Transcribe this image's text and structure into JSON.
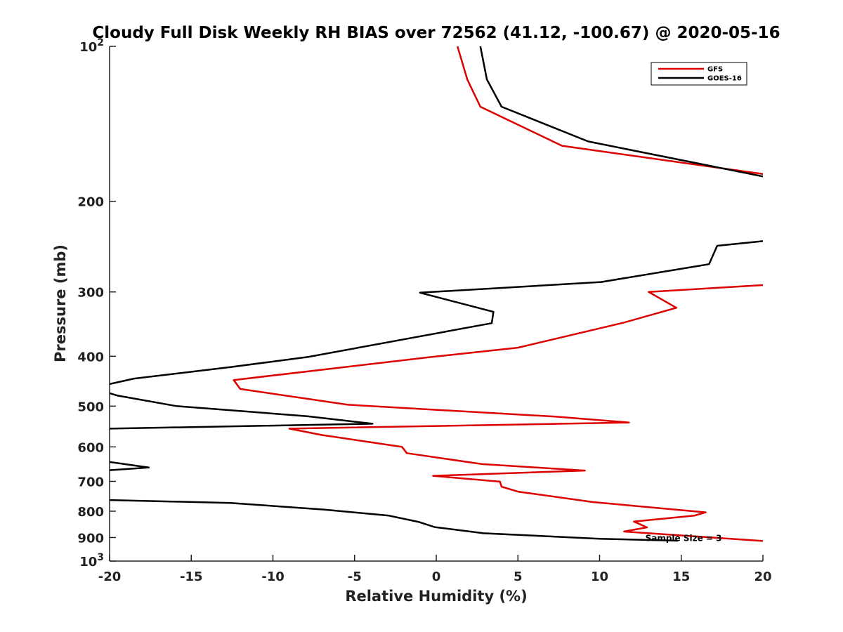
{
  "chart_data": {
    "type": "line",
    "title": "Cloudy Full Disk Weekly RH BIAS over 72562 (41.12, -100.67) @ 2020-05-16",
    "xlabel": "Relative Humidity (%)",
    "ylabel": "Pressure (mb)",
    "xlim": [
      -20,
      20
    ],
    "ylim": [
      100,
      1000
    ],
    "yscale": "log",
    "y_reversed": true,
    "grid": false,
    "legend_position": "top-right",
    "x_ticks": [
      {
        "value": -20,
        "label": "-20"
      },
      {
        "value": -15,
        "label": "-15"
      },
      {
        "value": -10,
        "label": "-10"
      },
      {
        "value": -5,
        "label": "-5"
      },
      {
        "value": 0,
        "label": "0"
      },
      {
        "value": 5,
        "label": "5"
      },
      {
        "value": 10,
        "label": "10"
      },
      {
        "value": 15,
        "label": "15"
      },
      {
        "value": 20,
        "label": "20"
      }
    ],
    "y_ticks": [
      {
        "value": 100,
        "base": "10",
        "exp": "2"
      },
      {
        "value": 200,
        "label": "200"
      },
      {
        "value": 300,
        "label": "300"
      },
      {
        "value": 400,
        "label": "400"
      },
      {
        "value": 500,
        "label": "500"
      },
      {
        "value": 600,
        "label": "600"
      },
      {
        "value": 700,
        "label": "700"
      },
      {
        "value": 800,
        "label": "800"
      },
      {
        "value": 900,
        "label": "900"
      },
      {
        "value": 1000,
        "base": "10",
        "exp": "3"
      }
    ],
    "annotation": {
      "text": "Sample Size = 3",
      "x": 12.8,
      "y": 900
    },
    "series": [
      {
        "name": "GFS",
        "color": "#dd0000",
        "segments": [
          [
            [
              1.3,
              100
            ],
            [
              1.9,
              116
            ],
            [
              2.7,
              131
            ],
            [
              7.7,
              156
            ],
            [
              20,
              177
            ]
          ],
          [
            [
              20,
              291
            ],
            [
              13,
              300
            ],
            [
              14.7,
              322
            ],
            [
              11.5,
              344
            ],
            [
              5.0,
              385
            ],
            [
              -0.5,
              402
            ],
            [
              -12.4,
              445
            ],
            [
              -12.0,
              463
            ],
            [
              -5.4,
              497
            ],
            [
              7.3,
              524
            ],
            [
              11.8,
              538
            ],
            [
              -9.0,
              553
            ],
            [
              -7.0,
              569
            ],
            [
              -2.1,
              600
            ],
            [
              -1.8,
              617
            ],
            [
              2.8,
              648
            ],
            [
              9.1,
              667
            ],
            [
              -0.2,
              683
            ],
            [
              3.9,
              701
            ],
            [
              4.0,
              717
            ],
            [
              5.0,
              733
            ],
            [
              9.6,
              768
            ],
            [
              16.5,
              804
            ],
            [
              15.8,
              816
            ],
            [
              12.1,
              838
            ],
            [
              12.9,
              860
            ],
            [
              11.5,
              876
            ],
            [
              20,
              914
            ]
          ]
        ]
      },
      {
        "name": "GOES-16",
        "color": "#000000",
        "segments": [
          [
            [
              2.7,
              100
            ],
            [
              3.1,
              116
            ],
            [
              4.0,
              131
            ],
            [
              9.3,
              153
            ],
            [
              20,
              179
            ]
          ],
          [
            [
              20,
              239
            ],
            [
              17.2,
              244
            ],
            [
              16.7,
              265
            ],
            [
              10.1,
              287
            ],
            [
              -1.0,
              301
            ],
            [
              3.5,
              328
            ],
            [
              3.4,
              345
            ],
            [
              -7.8,
              401
            ],
            [
              -12.6,
              420
            ],
            [
              -18.5,
              442
            ],
            [
              -20,
              453
            ]
          ],
          [
            [
              -20,
              472
            ],
            [
              -19.5,
              477
            ],
            [
              -15.9,
              500
            ],
            [
              -7.9,
              523
            ],
            [
              -3.9,
              541
            ],
            [
              -20,
              553
            ]
          ],
          [
            [
              -20,
              642
            ],
            [
              -17.6,
              658
            ],
            [
              -20,
              666
            ]
          ],
          [
            [
              -20,
              761
            ],
            [
              -12.6,
              771
            ],
            [
              -6.9,
              794
            ],
            [
              -2.9,
              816
            ],
            [
              -1.1,
              839
            ],
            [
              -0.1,
              859
            ],
            [
              2.9,
              883
            ],
            [
              10.0,
              905
            ],
            [
              14.8,
              913
            ]
          ]
        ]
      }
    ]
  }
}
